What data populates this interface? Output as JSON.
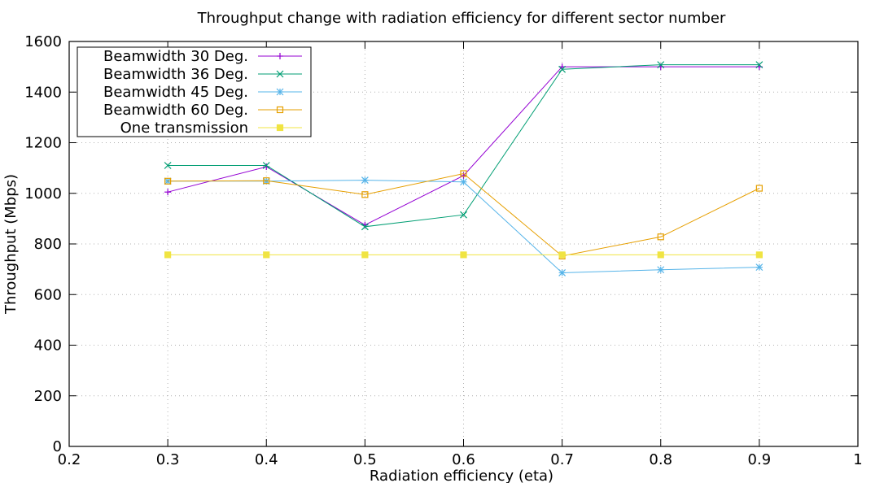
{
  "chart_data": {
    "type": "line",
    "title": "Throughput change with radiation efficiency for different sector number",
    "xlabel": "Radiation efficiency (eta)",
    "ylabel": "Throughput (Mbps)",
    "xlim": [
      0.2,
      1.0
    ],
    "ylim": [
      0,
      1600
    ],
    "xticks": [
      "0.2",
      "0.3",
      "0.4",
      "0.5",
      "0.6",
      "0.7",
      "0.8",
      "0.9",
      "1"
    ],
    "yticks": [
      "0",
      "200",
      "400",
      "600",
      "800",
      "1000",
      "1200",
      "1400",
      "1600"
    ],
    "grid": true,
    "legend_position": "top-left",
    "x": [
      0.3,
      0.4,
      0.5,
      0.6,
      0.7,
      0.8,
      0.9
    ],
    "series": [
      {
        "name": "Beamwidth 30 Deg.",
        "color": "#9400d3",
        "marker": "plus",
        "values": [
          1005,
          1105,
          875,
          1070,
          1500,
          1500,
          1500
        ]
      },
      {
        "name": "Beamwidth 36 Deg.",
        "color": "#009e73",
        "marker": "cross",
        "values": [
          1110,
          1110,
          868,
          915,
          1490,
          1508,
          1508
        ]
      },
      {
        "name": "Beamwidth 45 Deg.",
        "color": "#56b4e9",
        "marker": "star",
        "values": [
          1048,
          1048,
          1052,
          1045,
          686,
          698,
          708
        ]
      },
      {
        "name": "Beamwidth 60 Deg.",
        "color": "#e69f00",
        "marker": "open-square",
        "values": [
          1048,
          1050,
          995,
          1078,
          752,
          828,
          1020
        ]
      },
      {
        "name": "One transmission",
        "color": "#f0e442",
        "marker": "filled-square",
        "values": [
          757,
          757,
          757,
          757,
          757,
          757,
          757
        ]
      }
    ]
  }
}
